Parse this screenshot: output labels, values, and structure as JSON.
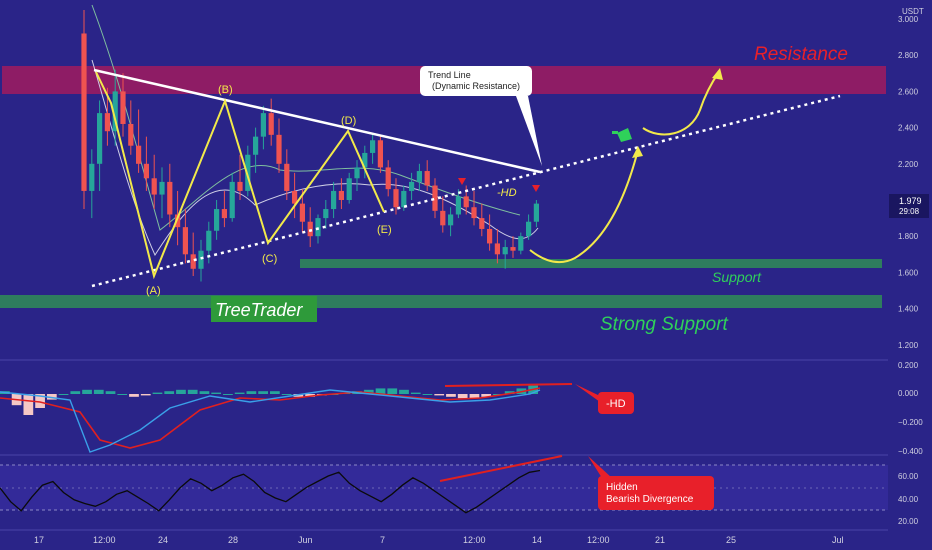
{
  "chart_data": {
    "type": "candlestick",
    "price_axis": {
      "unit": "USDT",
      "ticks": [
        "3.000",
        "2.800",
        "2.600",
        "2.400",
        "2.200",
        "2.000",
        "1.800",
        "1.600",
        "1.400",
        "1.200"
      ],
      "current_price": "1.979",
      "countdown": "29:08",
      "range": [
        1.0,
        3.1
      ]
    },
    "macd_axis": {
      "ticks": [
        "0.200",
        "0.000",
        "−0.200",
        "−0.400"
      ]
    },
    "rsi_axis": {
      "ticks": [
        "60.00",
        "40.00",
        "20.00"
      ]
    },
    "x_ticks": [
      "17",
      "12:00",
      "24",
      "28",
      "Jun",
      "7",
      "12:00",
      "14",
      "12:00",
      "21",
      "25",
      "Jul"
    ],
    "zones": [
      {
        "name": "Resistance",
        "label": "Resistance",
        "low": 2.6,
        "high": 2.74,
        "color": "#b01a5a"
      },
      {
        "name": "Support",
        "label": "Support",
        "low": 1.6,
        "high": 1.64,
        "color": "#2e7d5e"
      },
      {
        "name": "Strong Support",
        "label": "Strong Support",
        "low": 1.38,
        "high": 1.44,
        "color": "#2e7d5e"
      }
    ],
    "wave_labels": [
      "(A)",
      "(B)",
      "(C)",
      "(D)",
      "(E)"
    ],
    "wave_points": [
      {
        "t": 6,
        "p": 2.72
      },
      {
        "t": 19,
        "p": 1.56
      },
      {
        "t": 28,
        "p": 2.56
      },
      {
        "t": 34,
        "p": 1.74
      },
      {
        "t": 46,
        "p": 2.36
      },
      {
        "t": 51,
        "p": 1.91
      }
    ],
    "trend_line": {
      "label": "Trend Line\n(Dynamic Resistance)",
      "start": {
        "t": 6,
        "p": 2.72
      },
      "end": {
        "t": 70,
        "p": 2.16
      }
    },
    "support_line": {
      "start": {
        "t": 6,
        "p": 1.47
      },
      "end": {
        "t": 112,
        "p": 2.6
      }
    },
    "annotations": {
      "hd_price": "-HD",
      "macd_hd": "-HD",
      "rsi_note": "Hidden\nBearish Divergence",
      "brand": "TreeTrader"
    },
    "colors": {
      "background": "#2a2488",
      "up": "#26a69a",
      "down": "#ef5350",
      "wave": "#f2e94a",
      "trend": "#ffffff",
      "accent_red": "#e8202a",
      "support_text": "#2fd15a"
    }
  },
  "candles": [
    {
      "o": 2.92,
      "h": 3.05,
      "l": 1.95,
      "c": 2.05
    },
    {
      "o": 2.05,
      "h": 2.28,
      "l": 1.9,
      "c": 2.2
    },
    {
      "o": 2.2,
      "h": 2.55,
      "l": 2.05,
      "c": 2.48
    },
    {
      "o": 2.48,
      "h": 2.62,
      "l": 2.3,
      "c": 2.38
    },
    {
      "o": 2.38,
      "h": 2.72,
      "l": 2.3,
      "c": 2.6
    },
    {
      "o": 2.6,
      "h": 2.7,
      "l": 2.35,
      "c": 2.42
    },
    {
      "o": 2.42,
      "h": 2.55,
      "l": 2.25,
      "c": 2.3
    },
    {
      "o": 2.3,
      "h": 2.5,
      "l": 2.15,
      "c": 2.2
    },
    {
      "o": 2.2,
      "h": 2.35,
      "l": 2.05,
      "c": 2.12
    },
    {
      "o": 2.12,
      "h": 2.25,
      "l": 1.95,
      "c": 2.03
    },
    {
      "o": 2.03,
      "h": 2.18,
      "l": 1.9,
      "c": 2.1
    },
    {
      "o": 2.1,
      "h": 2.2,
      "l": 1.85,
      "c": 1.92
    },
    {
      "o": 1.92,
      "h": 2.05,
      "l": 1.75,
      "c": 1.85
    },
    {
      "o": 1.85,
      "h": 1.95,
      "l": 1.65,
      "c": 1.7
    },
    {
      "o": 1.7,
      "h": 1.82,
      "l": 1.58,
      "c": 1.62
    },
    {
      "o": 1.62,
      "h": 1.78,
      "l": 1.55,
      "c": 1.72
    },
    {
      "o": 1.72,
      "h": 1.88,
      "l": 1.65,
      "c": 1.83
    },
    {
      "o": 1.83,
      "h": 2.0,
      "l": 1.78,
      "c": 1.95
    },
    {
      "o": 1.95,
      "h": 2.05,
      "l": 1.85,
      "c": 1.9
    },
    {
      "o": 1.9,
      "h": 2.15,
      "l": 1.88,
      "c": 2.1
    },
    {
      "o": 2.1,
      "h": 2.25,
      "l": 2.0,
      "c": 2.05
    },
    {
      "o": 2.05,
      "h": 2.3,
      "l": 2.02,
      "c": 2.25
    },
    {
      "o": 2.25,
      "h": 2.4,
      "l": 2.15,
      "c": 2.35
    },
    {
      "o": 2.35,
      "h": 2.52,
      "l": 2.28,
      "c": 2.48
    },
    {
      "o": 2.48,
      "h": 2.56,
      "l": 2.3,
      "c": 2.36
    },
    {
      "o": 2.36,
      "h": 2.45,
      "l": 2.15,
      "c": 2.2
    },
    {
      "o": 2.2,
      "h": 2.28,
      "l": 2.0,
      "c": 2.05
    },
    {
      "o": 2.05,
      "h": 2.15,
      "l": 1.9,
      "c": 1.98
    },
    {
      "o": 1.98,
      "h": 2.06,
      "l": 1.82,
      "c": 1.88
    },
    {
      "o": 1.88,
      "h": 1.96,
      "l": 1.74,
      "c": 1.8
    },
    {
      "o": 1.8,
      "h": 1.92,
      "l": 1.76,
      "c": 1.9
    },
    {
      "o": 1.9,
      "h": 2.0,
      "l": 1.84,
      "c": 1.95
    },
    {
      "o": 1.95,
      "h": 2.1,
      "l": 1.9,
      "c": 2.05
    },
    {
      "o": 2.05,
      "h": 2.12,
      "l": 1.95,
      "c": 2.0
    },
    {
      "o": 2.0,
      "h": 2.15,
      "l": 1.98,
      "c": 2.12
    },
    {
      "o": 2.12,
      "h": 2.22,
      "l": 2.05,
      "c": 2.18
    },
    {
      "o": 2.18,
      "h": 2.3,
      "l": 2.12,
      "c": 2.26
    },
    {
      "o": 2.26,
      "h": 2.36,
      "l": 2.2,
      "c": 2.33
    },
    {
      "o": 2.33,
      "h": 2.36,
      "l": 2.15,
      "c": 2.18
    },
    {
      "o": 2.18,
      "h": 2.22,
      "l": 2.02,
      "c": 2.06
    },
    {
      "o": 2.06,
      "h": 2.12,
      "l": 1.92,
      "c": 1.96
    },
    {
      "o": 1.96,
      "h": 2.08,
      "l": 1.94,
      "c": 2.05
    },
    {
      "o": 2.05,
      "h": 2.15,
      "l": 2.0,
      "c": 2.1
    },
    {
      "o": 2.1,
      "h": 2.2,
      "l": 2.05,
      "c": 2.16
    },
    {
      "o": 2.16,
      "h": 2.22,
      "l": 2.05,
      "c": 2.08
    },
    {
      "o": 2.08,
      "h": 2.12,
      "l": 1.9,
      "c": 1.94
    },
    {
      "o": 1.94,
      "h": 2.02,
      "l": 1.82,
      "c": 1.86
    },
    {
      "o": 1.86,
      "h": 1.96,
      "l": 1.8,
      "c": 1.92
    },
    {
      "o": 1.92,
      "h": 2.06,
      "l": 1.9,
      "c": 2.02
    },
    {
      "o": 2.02,
      "h": 2.08,
      "l": 1.92,
      "c": 1.96
    },
    {
      "o": 1.96,
      "h": 2.05,
      "l": 1.86,
      "c": 1.9
    },
    {
      "o": 1.9,
      "h": 1.98,
      "l": 1.8,
      "c": 1.84
    },
    {
      "o": 1.84,
      "h": 1.92,
      "l": 1.72,
      "c": 1.76
    },
    {
      "o": 1.76,
      "h": 1.84,
      "l": 1.65,
      "c": 1.7
    },
    {
      "o": 1.7,
      "h": 1.78,
      "l": 1.62,
      "c": 1.74
    },
    {
      "o": 1.74,
      "h": 1.8,
      "l": 1.68,
      "c": 1.72
    },
    {
      "o": 1.72,
      "h": 1.82,
      "l": 1.7,
      "c": 1.8
    },
    {
      "o": 1.8,
      "h": 1.92,
      "l": 1.78,
      "c": 1.88
    },
    {
      "o": 1.88,
      "h": 2.0,
      "l": 1.85,
      "c": 1.98
    }
  ],
  "indicators": {
    "macd": [
      0.02,
      -0.08,
      -0.15,
      -0.1,
      -0.04,
      0.0,
      0.02,
      0.03,
      0.03,
      0.02,
      0.0,
      -0.02,
      -0.01,
      0.01,
      0.02,
      0.03,
      0.03,
      0.02,
      0.01,
      0.0,
      0.01,
      0.02,
      0.02,
      0.02,
      0.0,
      -0.02,
      -0.02,
      -0.01,
      0.0,
      0.01,
      0.02,
      0.03,
      0.04,
      0.04,
      0.03,
      0.01,
      0.0,
      -0.01,
      -0.02,
      -0.03,
      -0.03,
      -0.02,
      0.0,
      0.02,
      0.04,
      0.06
    ],
    "rsi": [
      55,
      40,
      30,
      45,
      58,
      62,
      50,
      42,
      38,
      35,
      40,
      48,
      52,
      45,
      38,
      30,
      42,
      55,
      65,
      60,
      52,
      58,
      66,
      70,
      62,
      50,
      44,
      40,
      48,
      56,
      62,
      68,
      72,
      60,
      52,
      46,
      40,
      48,
      58,
      66,
      60,
      52,
      44,
      36,
      28,
      34,
      42,
      50,
      58,
      66,
      72,
      74
    ]
  }
}
